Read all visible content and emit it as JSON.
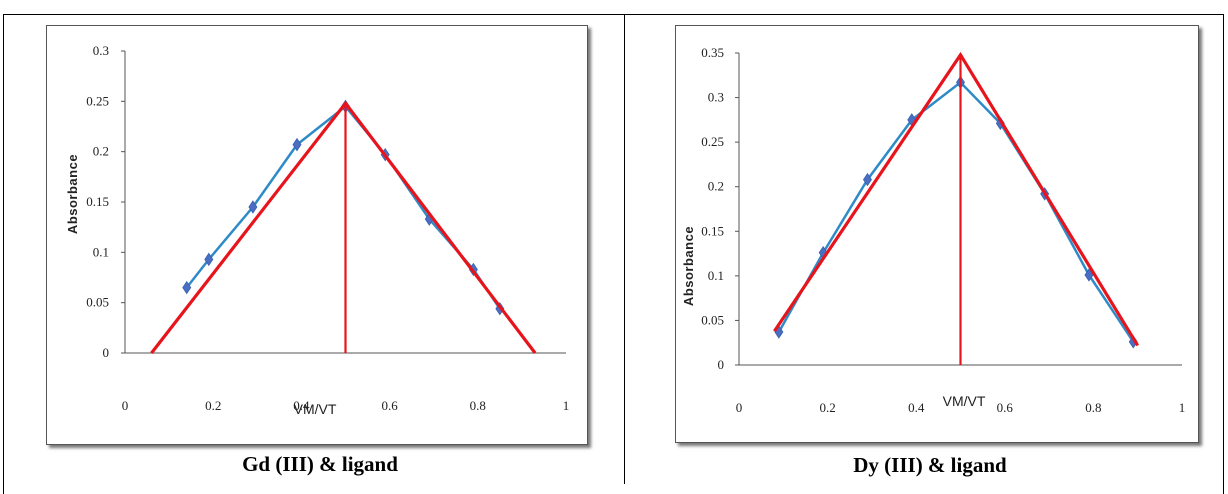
{
  "captions": {
    "left": "Gd (III) & ligand",
    "right": "Dy (III) & ligand"
  },
  "colors": {
    "data_line": "#2e8bc7",
    "data_marker": "#4a6fc2",
    "fit_line": "#e8141c"
  },
  "chart_data": [
    {
      "type": "line",
      "panel": "left",
      "xlabel": "VM/VT",
      "ylabel": "Absorbance",
      "xlim": [
        0,
        1
      ],
      "ylim": [
        0,
        0.3
      ],
      "x_ticks": [
        "0",
        "0.2",
        "0.4",
        "0.6",
        "0.8",
        "1"
      ],
      "y_ticks": [
        "0",
        "0.05",
        "0.1",
        "0.15",
        "0.2",
        "0.25",
        "0.3"
      ],
      "series": [
        {
          "role": "data",
          "marker": "diamond",
          "x": [
            0.14,
            0.19,
            0.29,
            0.39,
            0.5,
            0.59,
            0.69,
            0.79,
            0.85
          ],
          "y": [
            0.065,
            0.093,
            0.145,
            0.207,
            0.245,
            0.197,
            0.133,
            0.083,
            0.044
          ]
        },
        {
          "role": "fit",
          "x": [
            0.06,
            0.5,
            0.93
          ],
          "y": [
            0.0,
            0.248,
            0.0
          ]
        },
        {
          "role": "vertical",
          "x": [
            0.5,
            0.5
          ],
          "y": [
            0.0,
            0.248
          ]
        }
      ]
    },
    {
      "type": "line",
      "panel": "right",
      "xlabel": "VM/VT",
      "ylabel": "Absorbance",
      "xlim": [
        0,
        1
      ],
      "ylim": [
        0,
        0.35
      ],
      "x_ticks": [
        "0",
        "0.2",
        "0.4",
        "0.6",
        "0.8",
        "1"
      ],
      "y_ticks": [
        "0",
        "0.05",
        "0.1",
        "0.15",
        "0.2",
        "0.25",
        "0.3",
        "0.35"
      ],
      "series": [
        {
          "role": "data",
          "marker": "diamond",
          "x": [
            0.09,
            0.19,
            0.29,
            0.39,
            0.5,
            0.59,
            0.69,
            0.79,
            0.89
          ],
          "y": [
            0.037,
            0.126,
            0.208,
            0.275,
            0.317,
            0.271,
            0.192,
            0.101,
            0.026
          ]
        },
        {
          "role": "fit",
          "x": [
            0.08,
            0.5,
            0.9
          ],
          "y": [
            0.038,
            0.348,
            0.022
          ]
        },
        {
          "role": "vertical",
          "x": [
            0.5,
            0.5
          ],
          "y": [
            0.0,
            0.348
          ]
        }
      ]
    }
  ]
}
